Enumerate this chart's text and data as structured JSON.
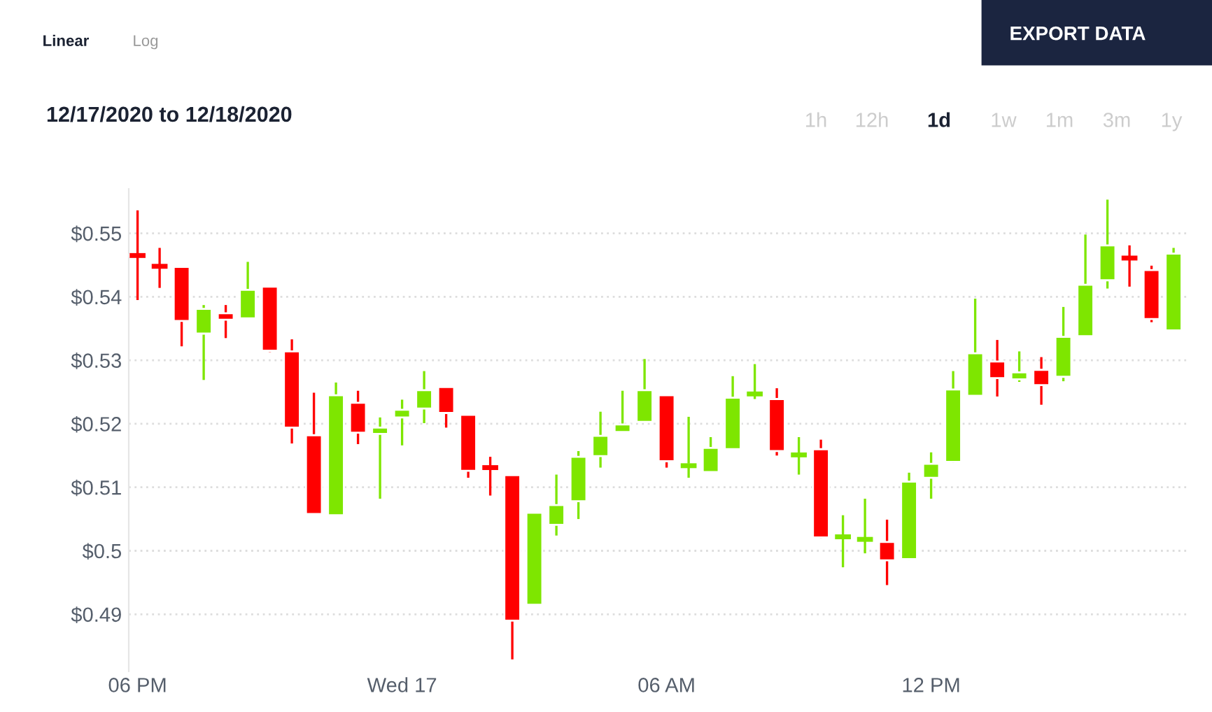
{
  "chart_data": {
    "type": "candlestick",
    "title": "12/17/2020 to 12/18/2020",
    "annotations": [
      "Linear",
      "Log",
      "EXPORT DATA",
      "1h",
      "12h",
      "1d",
      "1w",
      "1m",
      "3m",
      "1y"
    ],
    "x": [
      "2020-12-16T18:00",
      "2020-12-16T18:30",
      "2020-12-16T19:00",
      "2020-12-16T19:30",
      "2020-12-16T20:00",
      "2020-12-16T20:30",
      "2020-12-16T21:00",
      "2020-12-16T21:30",
      "2020-12-16T22:00",
      "2020-12-16T22:30",
      "2020-12-16T23:00",
      "2020-12-16T23:30",
      "2020-12-17T00:00",
      "2020-12-17T00:30",
      "2020-12-17T01:00",
      "2020-12-17T01:30",
      "2020-12-17T02:00",
      "2020-12-17T02:30",
      "2020-12-17T03:00",
      "2020-12-17T03:30",
      "2020-12-17T04:00",
      "2020-12-17T04:30",
      "2020-12-17T05:00",
      "2020-12-17T05:30",
      "2020-12-17T06:00",
      "2020-12-17T06:30",
      "2020-12-17T07:00",
      "2020-12-17T07:30",
      "2020-12-17T08:00",
      "2020-12-17T08:30",
      "2020-12-17T09:00",
      "2020-12-17T09:30",
      "2020-12-17T10:00",
      "2020-12-17T10:30",
      "2020-12-17T11:00",
      "2020-12-17T11:30",
      "2020-12-17T12:00",
      "2020-12-17T12:30",
      "2020-12-17T13:00",
      "2020-12-17T13:30",
      "2020-12-17T14:00",
      "2020-12-17T14:30",
      "2020-12-17T15:00",
      "2020-12-17T15:30",
      "2020-12-17T16:00",
      "2020-12-17T16:30",
      "2020-12-17T17:00",
      "2020-12-17T17:30"
    ],
    "ohlc": [
      [
        0.5466,
        0.5536,
        0.5395,
        0.5464
      ],
      [
        0.5449,
        0.5477,
        0.5414,
        0.5447
      ],
      [
        0.5447,
        0.5447,
        0.5322,
        0.5362
      ],
      [
        0.5342,
        0.5387,
        0.5269,
        0.5381
      ],
      [
        0.5374,
        0.5387,
        0.5335,
        0.5364
      ],
      [
        0.5366,
        0.5455,
        0.5366,
        0.5411
      ],
      [
        0.5416,
        0.5416,
        0.5313,
        0.5315
      ],
      [
        0.5314,
        0.5333,
        0.5169,
        0.5194
      ],
      [
        0.5182,
        0.5249,
        0.5057,
        0.5058
      ],
      [
        0.5056,
        0.5265,
        0.5056,
        0.5245
      ],
      [
        0.5233,
        0.5252,
        0.5168,
        0.5186
      ],
      [
        0.5184,
        0.521,
        0.5082,
        0.5194
      ],
      [
        0.521,
        0.5238,
        0.5166,
        0.5222
      ],
      [
        0.5224,
        0.5283,
        0.5201,
        0.5253
      ],
      [
        0.5258,
        0.5258,
        0.5194,
        0.5217
      ],
      [
        0.5214,
        0.5214,
        0.5115,
        0.5126
      ],
      [
        0.5132,
        0.5148,
        0.5087,
        0.513
      ],
      [
        0.5119,
        0.5119,
        0.4829,
        0.489
      ],
      [
        0.4915,
        0.506,
        0.4914,
        0.506
      ],
      [
        0.5041,
        0.512,
        0.5024,
        0.5072
      ],
      [
        0.5078,
        0.5157,
        0.505,
        0.5148
      ],
      [
        0.5149,
        0.5219,
        0.5131,
        0.5181
      ],
      [
        0.5187,
        0.5252,
        0.5187,
        0.5199
      ],
      [
        0.5203,
        0.5302,
        0.5203,
        0.5253
      ],
      [
        0.5245,
        0.5245,
        0.5131,
        0.5141
      ],
      [
        0.5132,
        0.5211,
        0.5115,
        0.5136
      ],
      [
        0.5124,
        0.5179,
        0.5124,
        0.5162
      ],
      [
        0.516,
        0.5275,
        0.516,
        0.5241
      ],
      [
        0.5246,
        0.5294,
        0.5239,
        0.5248
      ],
      [
        0.5239,
        0.5256,
        0.515,
        0.5157
      ],
      [
        0.515,
        0.5179,
        0.512,
        0.5152
      ],
      [
        0.516,
        0.5175,
        0.502,
        0.5021
      ],
      [
        0.5021,
        0.5056,
        0.4974,
        0.5023
      ],
      [
        0.5017,
        0.5082,
        0.4996,
        0.5019
      ],
      [
        0.5014,
        0.5049,
        0.4946,
        0.4985
      ],
      [
        0.4987,
        0.5123,
        0.4986,
        0.5109
      ],
      [
        0.5115,
        0.5155,
        0.5082,
        0.5137
      ],
      [
        0.514,
        0.5283,
        0.5139,
        0.5254
      ],
      [
        0.5244,
        0.5397,
        0.5244,
        0.5311
      ],
      [
        0.5298,
        0.5332,
        0.5243,
        0.5272
      ],
      [
        0.527,
        0.5314,
        0.5266,
        0.5281
      ],
      [
        0.5285,
        0.5305,
        0.523,
        0.5261
      ],
      [
        0.5274,
        0.5384,
        0.5267,
        0.5337
      ],
      [
        0.5338,
        0.5498,
        0.5338,
        0.5419
      ],
      [
        0.5426,
        0.5553,
        0.5413,
        0.5481
      ],
      [
        0.5462,
        0.5481,
        0.5416,
        0.546
      ],
      [
        0.5442,
        0.5449,
        0.536,
        0.5365
      ],
      [
        0.5347,
        0.5477,
        0.5347,
        0.5468
      ]
    ],
    "colors": [
      "#ff0000",
      "#ff0000",
      "#ff0000",
      "#7ee600",
      "#ff0000",
      "#7ee600",
      "#ff0000",
      "#ff0000",
      "#ff0000",
      "#7ee600",
      "#ff0000",
      "#7ee600",
      "#7ee600",
      "#7ee600",
      "#ff0000",
      "#ff0000",
      "#ff0000",
      "#ff0000",
      "#7ee600",
      "#7ee600",
      "#7ee600",
      "#7ee600",
      "#7ee600",
      "#7ee600",
      "#ff0000",
      "#7ee600",
      "#7ee600",
      "#7ee600",
      "#7ee600",
      "#ff0000",
      "#7ee600",
      "#ff0000",
      "#7ee600",
      "#7ee600",
      "#ff0000",
      "#7ee600",
      "#7ee600",
      "#7ee600",
      "#7ee600",
      "#ff0000",
      "#7ee600",
      "#ff0000",
      "#7ee600",
      "#7ee600",
      "#7ee600",
      "#ff0000",
      "#ff0000",
      "#7ee600"
    ],
    "xlim": [
      "2020-12-16T17:48",
      "2020-12-17T17:48"
    ],
    "xticks": [
      {
        "value": "2020-12-16T18:00",
        "label": "06 PM"
      },
      {
        "value": "2020-12-17T00:00",
        "label": "Wed 17"
      },
      {
        "value": "2020-12-17T06:00",
        "label": "06 AM"
      },
      {
        "value": "2020-12-17T12:00",
        "label": "12 PM"
      }
    ],
    "ylim": [
      0.481,
      0.557
    ],
    "yticks": [
      {
        "value": 0.49,
        "label": "$0.49"
      },
      {
        "value": 0.5,
        "label": "$0.5"
      },
      {
        "value": 0.51,
        "label": "$0.51"
      },
      {
        "value": 0.52,
        "label": "$0.52"
      },
      {
        "value": 0.53,
        "label": "$0.53"
      },
      {
        "value": 0.54,
        "label": "$0.54"
      },
      {
        "value": 0.55,
        "label": "$0.55"
      }
    ],
    "grid": "y"
  }
}
